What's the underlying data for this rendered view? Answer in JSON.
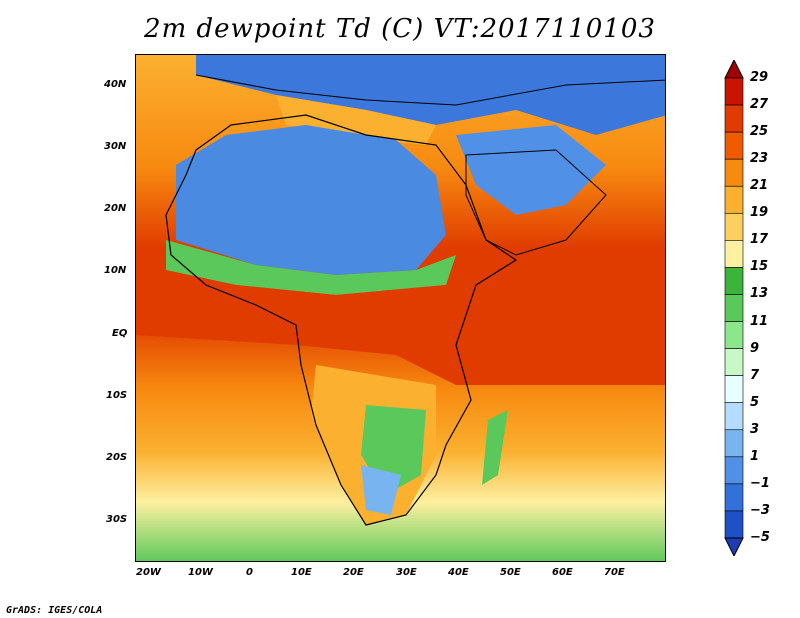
{
  "title": "2m dewpoint Td (C) VT:2017110103",
  "credit": "GrADS: IGES/COLA",
  "map": {
    "lat_labels": [
      "40N",
      "30N",
      "20N",
      "10N",
      "EQ",
      "10S",
      "20S",
      "30S"
    ],
    "lon_labels": [
      "20W",
      "10W",
      "0",
      "10E",
      "20E",
      "30E",
      "40E",
      "50E",
      "60E",
      "70E"
    ]
  },
  "colorbar": {
    "labels": [
      "29",
      "27",
      "25",
      "23",
      "21",
      "19",
      "17",
      "15",
      "13",
      "11",
      "9",
      "7",
      "5",
      "3",
      "1",
      "−1",
      "−3",
      "−5"
    ],
    "colors": [
      "#a00000",
      "#c81400",
      "#e03c00",
      "#f05a00",
      "#f78a10",
      "#fbb030",
      "#fcd060",
      "#fdf0a0",
      "#3cb43c",
      "#5ac85a",
      "#8ce68c",
      "#c8f8c8",
      "#e6ffff",
      "#b4dcff",
      "#78b4f0",
      "#5090e6",
      "#3270dc",
      "#1e50c8",
      "#1e3cb4"
    ]
  }
}
